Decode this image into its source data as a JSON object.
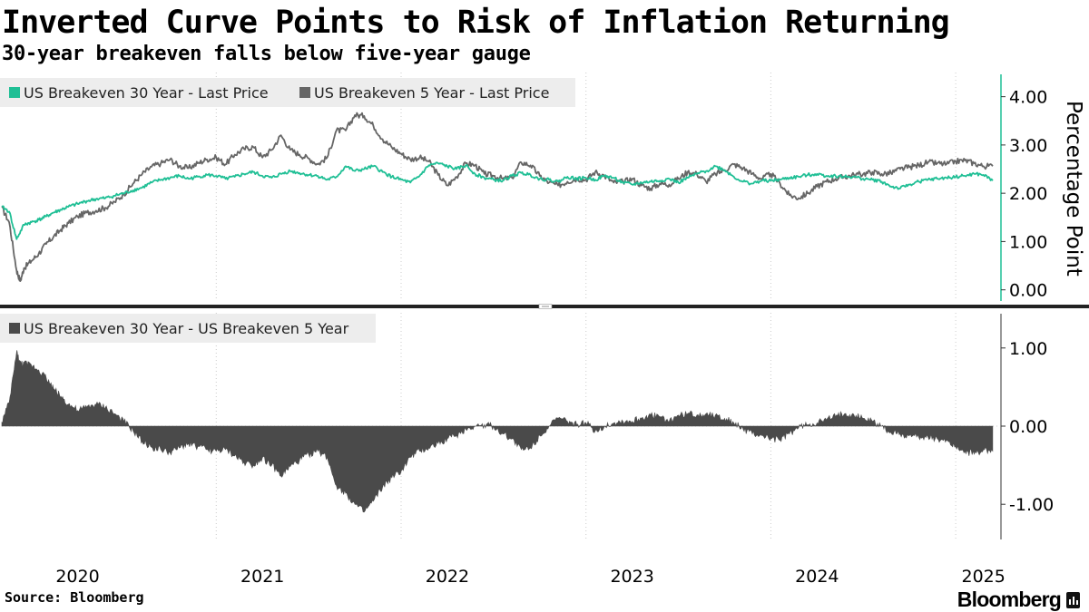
{
  "title": "Inverted Curve Points to Risk of Inflation Returning",
  "subtitle": "30-year breakeven falls below five-year gauge",
  "source": "Source: Bloomberg",
  "brand": "Bloomberg",
  "colors": {
    "teal": "#1fbf95",
    "gray": "#666666",
    "dark": "#4a4a4a",
    "grid": "#cccccc"
  },
  "chart_data": [
    {
      "type": "line",
      "panel": "top",
      "ylabel": "Percentage Point",
      "ylim": [
        -0.1,
        4.5
      ],
      "yticks": [
        "0.00",
        "1.00",
        "2.00",
        "3.00",
        "4.00"
      ],
      "ytick_values": [
        0,
        1,
        2,
        3,
        4
      ],
      "legend_position": "top-left",
      "x_range": [
        2019.84,
        2025.24
      ],
      "series": [
        {
          "name": "US Breakeven 30 Year - Last Price",
          "color": "teal",
          "x": [
            2019.84,
            2019.88,
            2019.92,
            2019.96,
            2020.0,
            2020.04,
            2020.08,
            2020.12,
            2020.16,
            2020.2,
            2020.25,
            2020.3,
            2020.35,
            2020.4,
            2020.45,
            2020.5,
            2020.55,
            2020.6,
            2020.65,
            2020.7,
            2020.75,
            2020.8,
            2020.85,
            2020.9,
            2020.95,
            2021.0,
            2021.05,
            2021.1,
            2021.15,
            2021.2,
            2021.25,
            2021.3,
            2021.35,
            2021.4,
            2021.45,
            2021.5,
            2021.55,
            2021.6,
            2021.65,
            2021.7,
            2021.75,
            2021.8,
            2021.85,
            2021.9,
            2021.95,
            2022.0,
            2022.05,
            2022.1,
            2022.15,
            2022.2,
            2022.25,
            2022.3,
            2022.35,
            2022.4,
            2022.45,
            2022.5,
            2022.55,
            2022.6,
            2022.65,
            2022.7,
            2022.75,
            2022.8,
            2022.85,
            2022.9,
            2022.95,
            2023.0,
            2023.05,
            2023.1,
            2023.15,
            2023.2,
            2023.25,
            2023.3,
            2023.35,
            2023.4,
            2023.45,
            2023.5,
            2023.55,
            2023.6,
            2023.65,
            2023.7,
            2023.75,
            2023.8,
            2023.85,
            2023.9,
            2023.95,
            2024.0,
            2024.05,
            2024.1,
            2024.15,
            2024.2,
            2024.25,
            2024.3,
            2024.35,
            2024.4,
            2024.45,
            2024.5,
            2024.55,
            2024.6,
            2024.65,
            2024.7,
            2024.75,
            2024.8,
            2024.85,
            2024.9,
            2024.95,
            2025.0,
            2025.05,
            2025.1,
            2025.15,
            2025.2
          ],
          "values": [
            1.72,
            1.62,
            1.05,
            1.35,
            1.4,
            1.45,
            1.52,
            1.6,
            1.66,
            1.72,
            1.78,
            1.84,
            1.88,
            1.9,
            1.95,
            2.0,
            2.06,
            2.12,
            2.22,
            2.28,
            2.32,
            2.36,
            2.3,
            2.34,
            2.38,
            2.36,
            2.3,
            2.34,
            2.4,
            2.44,
            2.36,
            2.32,
            2.4,
            2.46,
            2.42,
            2.38,
            2.36,
            2.28,
            2.34,
            2.56,
            2.46,
            2.5,
            2.56,
            2.44,
            2.34,
            2.28,
            2.22,
            2.36,
            2.58,
            2.62,
            2.56,
            2.5,
            2.58,
            2.4,
            2.32,
            2.28,
            2.26,
            2.36,
            2.42,
            2.38,
            2.3,
            2.28,
            2.24,
            2.34,
            2.3,
            2.32,
            2.28,
            2.36,
            2.32,
            2.22,
            2.18,
            2.22,
            2.24,
            2.26,
            2.3,
            2.22,
            2.32,
            2.4,
            2.46,
            2.56,
            2.48,
            2.34,
            2.24,
            2.2,
            2.26,
            2.26,
            2.28,
            2.32,
            2.34,
            2.38,
            2.4,
            2.36,
            2.36,
            2.34,
            2.34,
            2.3,
            2.28,
            2.24,
            2.14,
            2.1,
            2.18,
            2.24,
            2.28,
            2.3,
            2.32,
            2.34,
            2.36,
            2.4,
            2.38,
            2.26
          ]
        },
        {
          "name": "US Breakeven 5 Year - Last Price",
          "color": "gray",
          "x": [
            2019.84,
            2019.88,
            2019.92,
            2019.94,
            2019.96,
            2020.0,
            2020.04,
            2020.08,
            2020.12,
            2020.16,
            2020.2,
            2020.25,
            2020.3,
            2020.35,
            2020.4,
            2020.45,
            2020.5,
            2020.55,
            2020.6,
            2020.65,
            2020.7,
            2020.75,
            2020.8,
            2020.85,
            2020.9,
            2020.95,
            2021.0,
            2021.05,
            2021.1,
            2021.15,
            2021.2,
            2021.25,
            2021.3,
            2021.35,
            2021.4,
            2021.45,
            2021.5,
            2021.55,
            2021.6,
            2021.65,
            2021.7,
            2021.75,
            2021.8,
            2021.85,
            2021.9,
            2021.95,
            2022.0,
            2022.05,
            2022.1,
            2022.15,
            2022.2,
            2022.25,
            2022.3,
            2022.35,
            2022.4,
            2022.45,
            2022.5,
            2022.55,
            2022.6,
            2022.65,
            2022.7,
            2022.75,
            2022.8,
            2022.85,
            2022.9,
            2022.95,
            2023.0,
            2023.05,
            2023.1,
            2023.15,
            2023.2,
            2023.25,
            2023.3,
            2023.35,
            2023.4,
            2023.45,
            2023.5,
            2023.55,
            2023.6,
            2023.65,
            2023.7,
            2023.75,
            2023.8,
            2023.85,
            2023.9,
            2023.95,
            2024.0,
            2024.05,
            2024.1,
            2024.15,
            2024.2,
            2024.25,
            2024.3,
            2024.35,
            2024.4,
            2024.45,
            2024.5,
            2024.55,
            2024.6,
            2024.65,
            2024.7,
            2024.75,
            2024.8,
            2024.85,
            2024.9,
            2024.95,
            2025.0,
            2025.05,
            2025.1,
            2025.15,
            2025.2
          ],
          "values": [
            1.7,
            1.4,
            0.4,
            0.18,
            0.45,
            0.6,
            0.75,
            0.95,
            1.1,
            1.25,
            1.38,
            1.52,
            1.6,
            1.64,
            1.7,
            1.82,
            1.98,
            2.2,
            2.4,
            2.55,
            2.62,
            2.7,
            2.56,
            2.52,
            2.62,
            2.7,
            2.74,
            2.6,
            2.8,
            2.92,
            2.96,
            2.74,
            2.9,
            3.2,
            2.9,
            2.8,
            2.72,
            2.6,
            2.74,
            3.3,
            3.3,
            3.62,
            3.6,
            3.4,
            3.12,
            2.95,
            2.82,
            2.7,
            2.74,
            2.66,
            2.38,
            2.16,
            2.34,
            2.62,
            2.58,
            2.4,
            2.36,
            2.3,
            2.32,
            2.64,
            2.58,
            2.36,
            2.22,
            2.16,
            2.24,
            2.3,
            2.28,
            2.44,
            2.36,
            2.22,
            2.24,
            2.3,
            2.16,
            2.1,
            2.2,
            2.18,
            2.3,
            2.44,
            2.4,
            2.24,
            2.4,
            2.48,
            2.6,
            2.52,
            2.4,
            2.3,
            2.4,
            2.2,
            1.96,
            1.9,
            2.0,
            2.14,
            2.24,
            2.3,
            2.34,
            2.38,
            2.4,
            2.44,
            2.4,
            2.42,
            2.5,
            2.54,
            2.58,
            2.64,
            2.62,
            2.6,
            2.66,
            2.68,
            2.62,
            2.56,
            2.56
          ]
        }
      ]
    },
    {
      "type": "area",
      "panel": "bottom",
      "ylim": [
        -1.45,
        1.45
      ],
      "yticks": [
        "1.00",
        "0.00",
        "-1.00"
      ],
      "ytick_values": [
        1,
        0,
        -1
      ],
      "legend_position": "top-left",
      "x_range": [
        2019.84,
        2025.24
      ],
      "series": [
        {
          "name": "US Breakeven 30 Year - US Breakeven 5 Year",
          "color": "dark",
          "x": [
            2019.84,
            2019.88,
            2019.92,
            2019.94,
            2019.96,
            2020.0,
            2020.04,
            2020.08,
            2020.12,
            2020.16,
            2020.2,
            2020.25,
            2020.3,
            2020.35,
            2020.4,
            2020.45,
            2020.5,
            2020.55,
            2020.6,
            2020.65,
            2020.7,
            2020.75,
            2020.8,
            2020.85,
            2020.9,
            2020.95,
            2021.0,
            2021.05,
            2021.1,
            2021.15,
            2021.2,
            2021.25,
            2021.3,
            2021.35,
            2021.4,
            2021.45,
            2021.5,
            2021.55,
            2021.6,
            2021.65,
            2021.7,
            2021.75,
            2021.8,
            2021.85,
            2021.9,
            2021.95,
            2022.0,
            2022.05,
            2022.1,
            2022.15,
            2022.2,
            2022.25,
            2022.3,
            2022.35,
            2022.4,
            2022.45,
            2022.5,
            2022.55,
            2022.6,
            2022.65,
            2022.7,
            2022.75,
            2022.8,
            2022.85,
            2022.9,
            2022.95,
            2023.0,
            2023.05,
            2023.1,
            2023.15,
            2023.2,
            2023.25,
            2023.3,
            2023.35,
            2023.4,
            2023.45,
            2023.5,
            2023.55,
            2023.6,
            2023.65,
            2023.7,
            2023.75,
            2023.8,
            2023.85,
            2023.9,
            2023.95,
            2024.0,
            2024.05,
            2024.1,
            2024.15,
            2024.2,
            2024.25,
            2024.3,
            2024.35,
            2024.4,
            2024.45,
            2024.5,
            2024.55,
            2024.6,
            2024.65,
            2024.7,
            2024.75,
            2024.8,
            2024.85,
            2024.9,
            2024.95,
            2025.0,
            2025.05,
            2025.1,
            2025.15,
            2025.2
          ],
          "values": [
            0.05,
            0.3,
            0.95,
            0.8,
            0.8,
            0.78,
            0.72,
            0.62,
            0.48,
            0.38,
            0.28,
            0.2,
            0.24,
            0.28,
            0.24,
            0.16,
            0.06,
            -0.06,
            -0.2,
            -0.27,
            -0.3,
            -0.34,
            -0.28,
            -0.22,
            -0.26,
            -0.3,
            -0.32,
            -0.3,
            -0.38,
            -0.46,
            -0.5,
            -0.4,
            -0.5,
            -0.64,
            -0.52,
            -0.44,
            -0.36,
            -0.32,
            -0.4,
            -0.76,
            -0.86,
            -1.0,
            -1.1,
            -0.96,
            -0.78,
            -0.66,
            -0.58,
            -0.4,
            -0.32,
            -0.28,
            -0.22,
            -0.16,
            -0.12,
            -0.04,
            0.0,
            0.02,
            0.0,
            -0.1,
            -0.16,
            -0.3,
            -0.28,
            -0.12,
            0.0,
            0.1,
            0.06,
            0.02,
            0.04,
            -0.06,
            0.0,
            0.04,
            0.06,
            0.06,
            0.1,
            0.14,
            0.12,
            0.06,
            0.14,
            0.16,
            0.14,
            0.16,
            0.14,
            0.1,
            0.04,
            -0.04,
            -0.1,
            -0.12,
            -0.16,
            -0.18,
            -0.1,
            -0.02,
            0.02,
            0.04,
            0.08,
            0.12,
            0.16,
            0.14,
            0.1,
            0.06,
            0.0,
            -0.08,
            -0.1,
            -0.12,
            -0.14,
            -0.14,
            -0.16,
            -0.18,
            -0.26,
            -0.32,
            -0.36,
            -0.3,
            -0.32
          ]
        }
      ]
    }
  ],
  "xaxis": {
    "years": [
      "2020",
      "2021",
      "2022",
      "2023",
      "2024",
      "2025"
    ],
    "label_positions": [
      2020.25,
      2021.25,
      2022.25,
      2023.25,
      2024.25,
      2025.15
    ],
    "boundaries": [
      2021.0,
      2022.0,
      2023.0,
      2024.0,
      2025.0
    ]
  }
}
